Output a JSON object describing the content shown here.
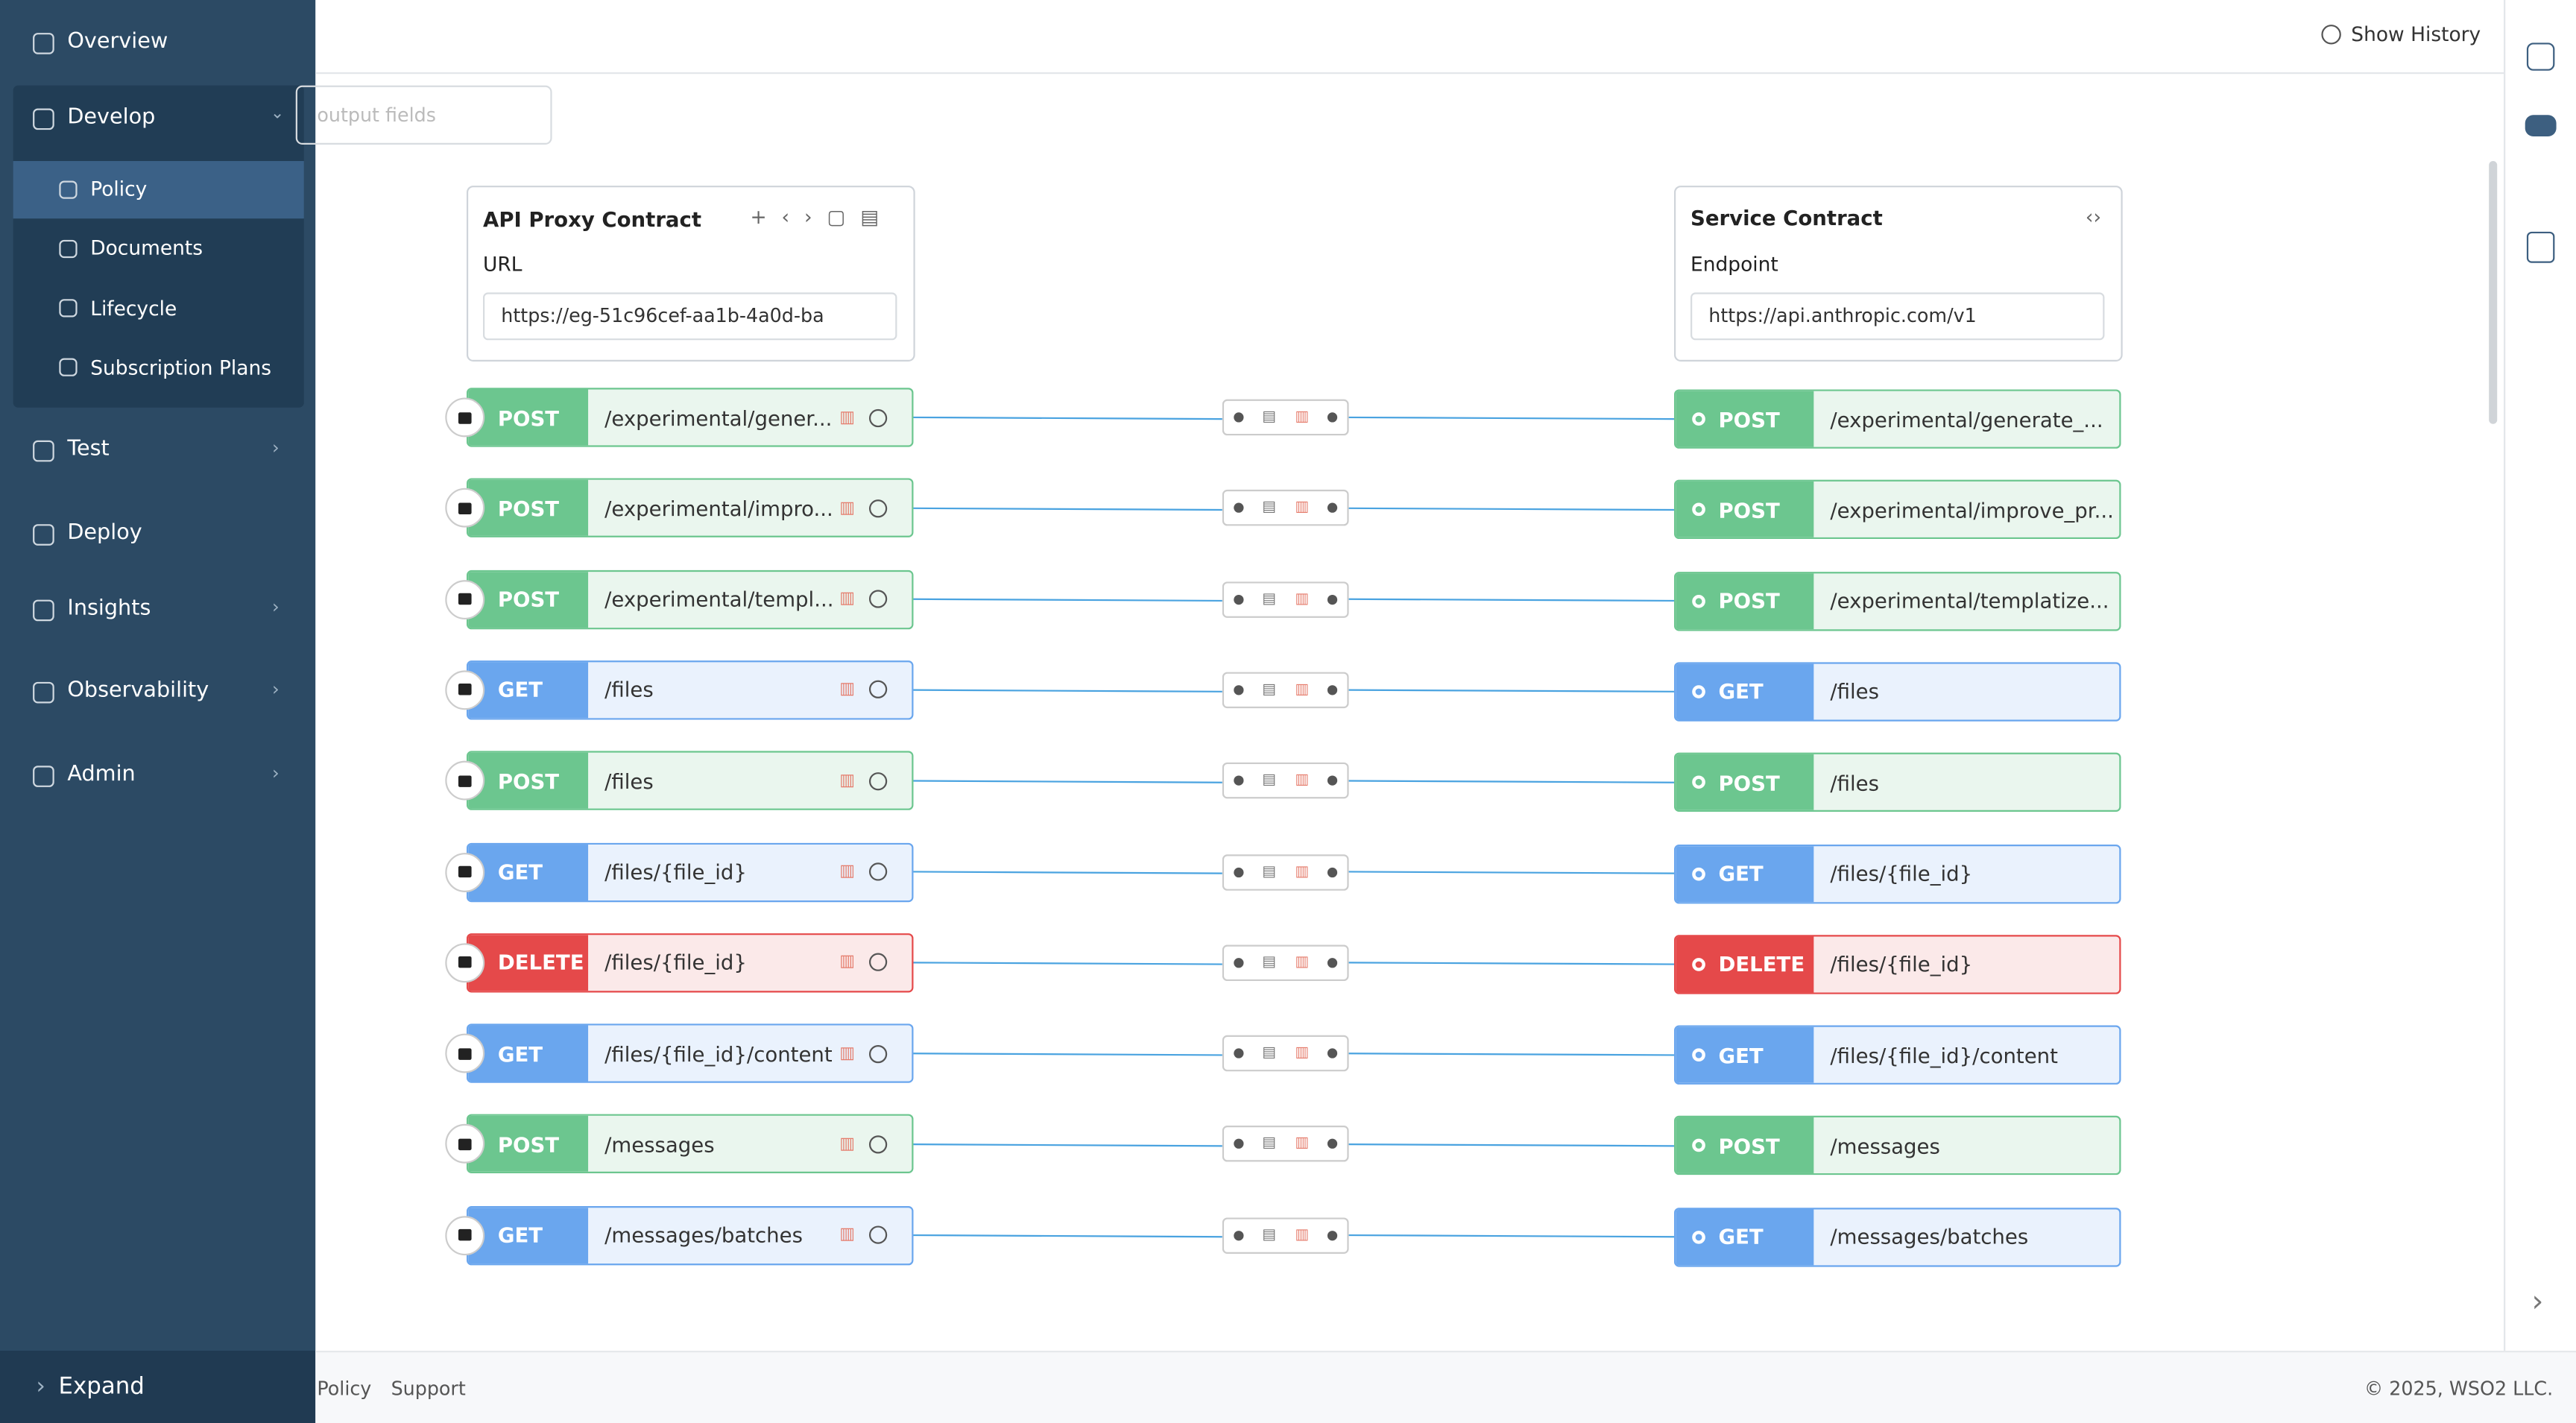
{
  "sidebar": {
    "top": "Overview",
    "develop": "Develop",
    "develop_children": [
      "Policy",
      "Documents",
      "Lifecycle",
      "Subscription Plans"
    ],
    "bottom": [
      "Test",
      "Deploy",
      "Insights",
      "Observability",
      "Admin"
    ],
    "expand": "Expand"
  },
  "header": {
    "history": "Show History"
  },
  "search": {
    "placeholder": "output fields"
  },
  "proxy": {
    "title": "API Proxy Contract",
    "url_label": "URL",
    "url": "https://eg-51c96cef-aa1b-4a0d-ba"
  },
  "service": {
    "title": "Service Contract",
    "endpoint_label": "Endpoint",
    "endpoint": "https://api.anthropic.com/v1"
  },
  "rows": [
    {
      "method": "POST",
      "left": "/experimental/gener...",
      "right": "/experimental/generate_..."
    },
    {
      "method": "POST",
      "left": "/experimental/impro...",
      "right": "/experimental/improve_pr..."
    },
    {
      "method": "POST",
      "left": "/experimental/templ...",
      "right": "/experimental/templatize..."
    },
    {
      "method": "GET",
      "left": "/files",
      "right": "/files"
    },
    {
      "method": "POST",
      "left": "/files",
      "right": "/files"
    },
    {
      "method": "GET",
      "left": "/files/{file_id}",
      "right": "/files/{file_id}"
    },
    {
      "method": "DELETE",
      "left": "/files/{file_id}",
      "right": "/files/{file_id}"
    },
    {
      "method": "GET",
      "left": "/files/{file_id}/content",
      "right": "/files/{file_id}/content"
    },
    {
      "method": "POST",
      "left": "/messages",
      "right": "/messages"
    },
    {
      "method": "GET",
      "left": "/messages/batches",
      "right": "/messages/batches"
    }
  ],
  "footer": {
    "links": [
      "Policy",
      "Support"
    ],
    "copyright": "© 2025, WSO2 LLC."
  }
}
